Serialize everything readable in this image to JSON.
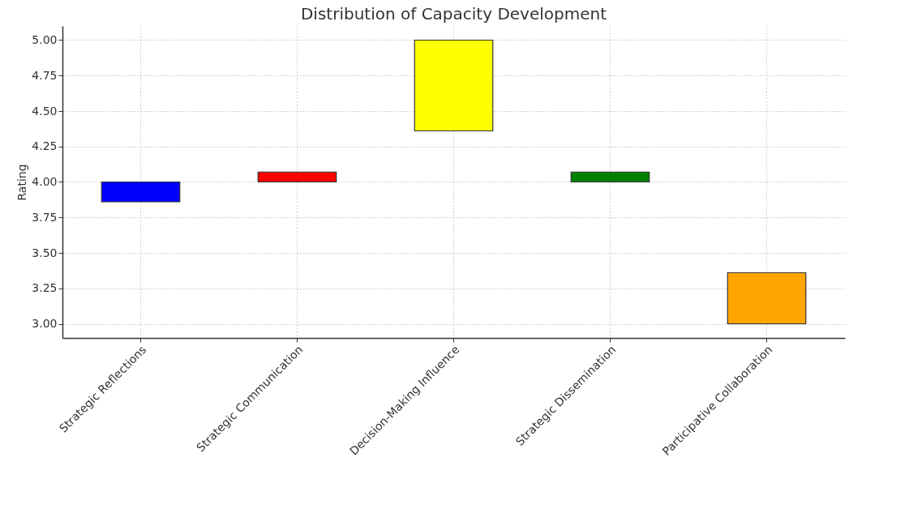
{
  "chart_data": {
    "type": "bar",
    "title": "Distribution of Capacity Development",
    "ylabel": "Rating",
    "categories": [
      "Strategic Reflections",
      "Strategic Communication",
      "Decision-Making Influence",
      "Strategic Dissemination",
      "Participative Collaboration"
    ],
    "base": [
      3.86,
      4.0,
      4.36,
      4.0,
      3.0
    ],
    "values": [
      0.14,
      0.07,
      0.64,
      0.07,
      0.36
    ],
    "colors": [
      "#0000ff",
      "#ff0000",
      "#ffff00",
      "#008000",
      "#ffa500"
    ],
    "ylim": [
      2.9,
      5.1
    ],
    "yticks": [
      {
        "value": 3,
        "label": "3.00"
      },
      {
        "value": 3.25,
        "label": "3.25"
      },
      {
        "value": 3.5,
        "label": "3.50"
      },
      {
        "value": 3.75,
        "label": "3.75"
      },
      {
        "value": 4,
        "label": "4.00"
      },
      {
        "value": 4.25,
        "label": "4.25"
      },
      {
        "value": 4.5,
        "label": "4.50"
      },
      {
        "value": 4.75,
        "label": "4.75"
      },
      {
        "value": 5,
        "label": "5.00"
      }
    ],
    "grid": true
  }
}
